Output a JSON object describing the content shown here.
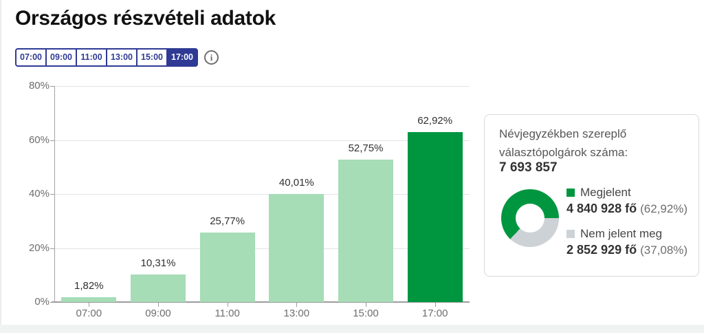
{
  "page": {
    "title": "Országos részvételi adatok"
  },
  "tabs": {
    "items": [
      {
        "label": "07:00",
        "selected": false
      },
      {
        "label": "09:00",
        "selected": false
      },
      {
        "label": "11:00",
        "selected": false
      },
      {
        "label": "13:00",
        "selected": false
      },
      {
        "label": "15:00",
        "selected": false
      },
      {
        "label": "17:00",
        "selected": true
      }
    ],
    "info_icon_glyph": "i"
  },
  "chart_data": {
    "type": "bar",
    "title": "",
    "categories": [
      "07:00",
      "09:00",
      "11:00",
      "13:00",
      "15:00",
      "17:00"
    ],
    "values": [
      1.82,
      10.31,
      25.77,
      40.01,
      52.75,
      62.92
    ],
    "value_labels": [
      "1,82%",
      "10,31%",
      "25,77%",
      "40,01%",
      "52,75%",
      "62,92%"
    ],
    "xlabel": "",
    "ylabel": "",
    "ylim": [
      0,
      80
    ],
    "yticks": [
      "0%",
      "20%",
      "40%",
      "60%",
      "80%"
    ],
    "grid": true,
    "legend_position": "none",
    "bar_color_default": "#a6dcb6",
    "bar_color_highlight": "#009640",
    "highlight_index": 5
  },
  "summary_card": {
    "heading_line1": "Névjegyzékben szereplő",
    "heading_line2": "választópolgárok száma:",
    "total": "7 693 857",
    "donut": {
      "type": "pie",
      "percent_green": 62.92,
      "percent_gray": 37.08,
      "green_color": "#009640",
      "gray_color": "#ccd2d5"
    },
    "legend": [
      {
        "label": "Megjelent",
        "value": "4 840 928 fő",
        "percent": "(62,92%)",
        "color": "#009640"
      },
      {
        "label": "Nem jelent meg",
        "value": "2 852 929 fő",
        "percent": "(37,08%)",
        "color": "#ccd2d5"
      }
    ]
  }
}
